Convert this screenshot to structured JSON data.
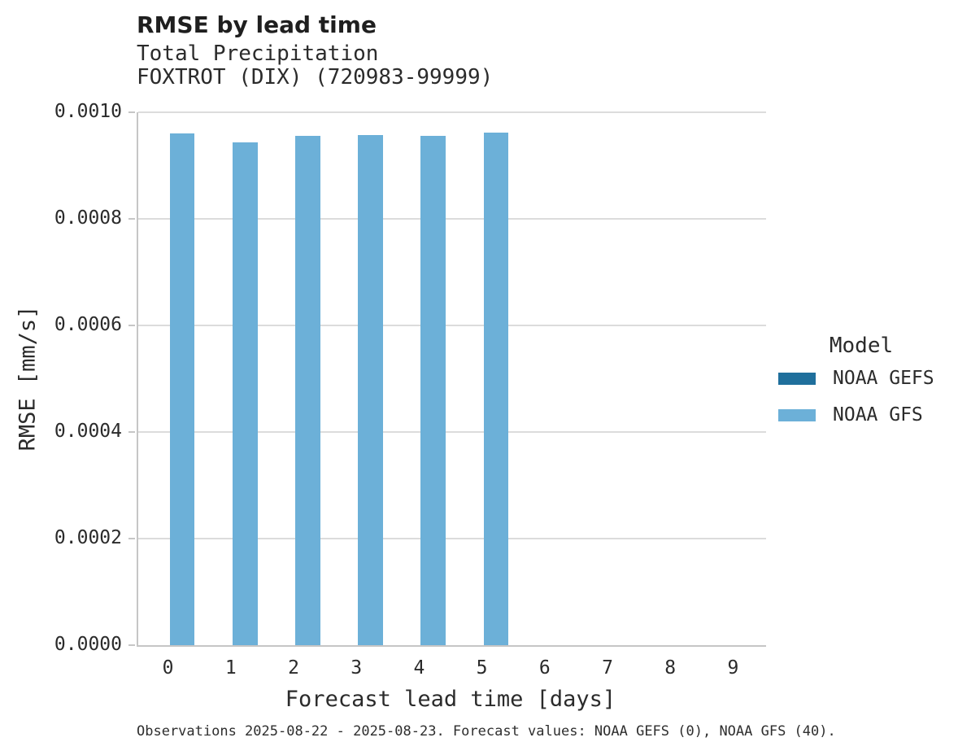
{
  "chart_data": {
    "type": "bar",
    "title": "RMSE by lead time",
    "subtitle": [
      "Total Precipitation",
      "FOXTROT (DIX) (720983-99999)"
    ],
    "xlabel": "Forecast lead time [days]",
    "ylabel": "RMSE [mm/s]",
    "categories": [
      "0",
      "1",
      "2",
      "3",
      "4",
      "5",
      "6",
      "7",
      "8",
      "9"
    ],
    "series": [
      {
        "name": "NOAA GEFS",
        "color": "#1F6F9C",
        "values": [
          0,
          0,
          0,
          0,
          0,
          0,
          0,
          0,
          0,
          0
        ]
      },
      {
        "name": "NOAA GFS",
        "color": "#6CB0D8",
        "values": [
          0.00096,
          0.000944,
          0.000956,
          0.000957,
          0.000956,
          0.000962,
          null,
          null,
          null,
          null
        ]
      }
    ],
    "ylim": [
      0,
      0.001
    ],
    "yticks": [
      "0.0000",
      "0.0002",
      "0.0004",
      "0.0006",
      "0.0008",
      "0.0010"
    ],
    "grid": true,
    "legend": {
      "title": "Model",
      "position": "right"
    },
    "caption": "Observations 2025-08-22 - 2025-08-23. Forecast values: NOAA GEFS (0), NOAA GFS (40)."
  }
}
